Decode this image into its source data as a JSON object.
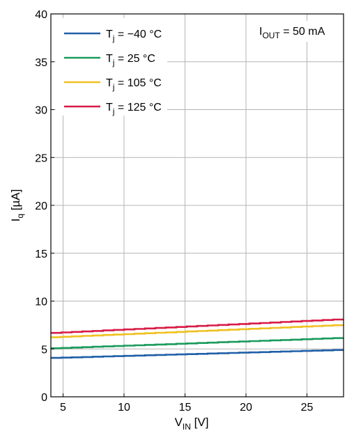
{
  "chart_data": {
    "type": "line",
    "xlabel": {
      "main": "V",
      "sub": "IN",
      "unit": " [V]"
    },
    "ylabel": {
      "main": "I",
      "sub": "q",
      "unit": " [µA]"
    },
    "xlim": [
      4,
      28
    ],
    "ylim": [
      0,
      40
    ],
    "xticks": [
      5,
      10,
      15,
      20,
      25
    ],
    "yticks": [
      0,
      5,
      10,
      15,
      20,
      25,
      30,
      35,
      40
    ],
    "grid": true,
    "legend_position": "top-left",
    "annotation": {
      "main": "I",
      "sub": "OUT",
      "rest": " = 50 mA"
    },
    "series": [
      {
        "name": "T_j = −40 °C",
        "label_main": "T",
        "label_sub": "j",
        "label_rest": " = −40 °C",
        "color": "#1f5fa8",
        "x": [
          4,
          28
        ],
        "y": [
          4.05,
          4.9
        ]
      },
      {
        "name": "T_j = 25 °C",
        "label_main": "T",
        "label_sub": "j",
        "label_rest": " = 25 °C",
        "color": "#1a9b5a",
        "x": [
          4,
          28
        ],
        "y": [
          5.05,
          6.15
        ]
      },
      {
        "name": "T_j = 105 °C",
        "label_main": "T",
        "label_sub": "j",
        "label_rest": " = 105 °C",
        "color": "#f0c020",
        "x": [
          4,
          28
        ],
        "y": [
          6.2,
          7.5
        ]
      },
      {
        "name": "T_j = 125 °C",
        "label_main": "T",
        "label_sub": "j",
        "label_rest": " = 125 °C",
        "color": "#d81a46",
        "x": [
          4,
          28
        ],
        "y": [
          6.65,
          8.1
        ]
      }
    ]
  }
}
